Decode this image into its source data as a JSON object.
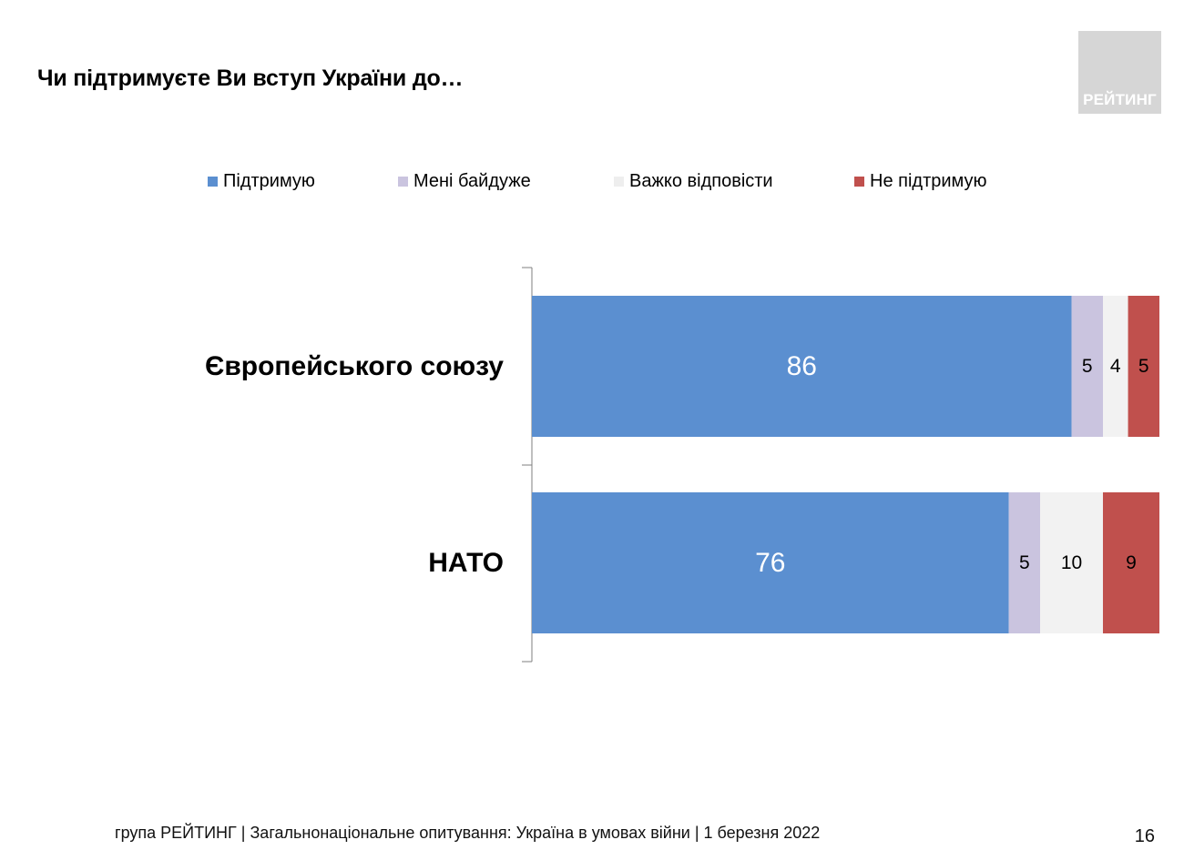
{
  "title": "Чи підтримуєте Ви вступ України до…",
  "logo": {
    "text": "РЕЙТИНГ"
  },
  "footer": "група РЕЙТИНГ | Загальнонаціональне опитування: Україна в умовах війни | 1 березня 2022",
  "page_number": "16",
  "chart_data": {
    "type": "bar",
    "orientation": "horizontal",
    "stacked": true,
    "categories": [
      "Європейського союзу",
      "НАТО"
    ],
    "series": [
      {
        "name": "Підтримую",
        "color": "#5b8fd0",
        "label_color": "#ffffff",
        "values": [
          86,
          76
        ]
      },
      {
        "name": "Мені байдуже",
        "color": "#cac4df",
        "label_color": "#000000",
        "values": [
          5,
          5
        ]
      },
      {
        "name": "Важко відповісти",
        "color": "#f2f2f2",
        "label_color": "#000000",
        "values": [
          4,
          10
        ]
      },
      {
        "name": "Не підтримую",
        "color": "#c0504d",
        "label_color": "#000000",
        "values": [
          5,
          9
        ]
      }
    ],
    "xlim": [
      0,
      100
    ],
    "legend_position": "top",
    "grid": false
  }
}
